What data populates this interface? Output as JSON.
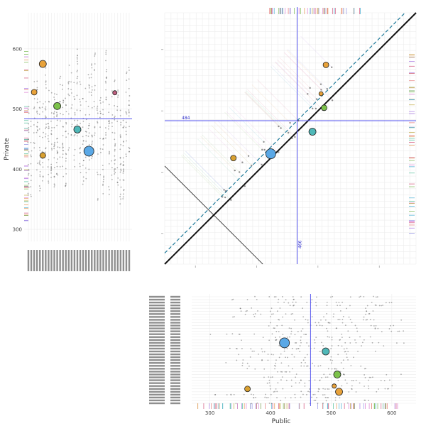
{
  "chart_data": [
    {
      "type": "scatter",
      "panel": "left-strip",
      "ylabel": "Private",
      "yticks": [
        300,
        400,
        500,
        600
      ],
      "ylim": [
        280,
        660
      ],
      "reference_line": 484,
      "highlight": [
        {
          "col": 2,
          "y": 528,
          "color": "#e8a23a",
          "size": 4
        },
        {
          "col": 5,
          "y": 575,
          "color": "#e8a23a",
          "size": 5
        },
        {
          "col": 5,
          "y": 423,
          "color": "#d9a030",
          "size": 4
        },
        {
          "col": 10,
          "y": 505,
          "color": "#7cc24a",
          "size": 5
        },
        {
          "col": 17,
          "y": 466,
          "color": "#4fb8b8",
          "size": 5
        },
        {
          "col": 21,
          "y": 430,
          "color": "#5aa8e6",
          "size": 7
        },
        {
          "col": 30,
          "y": 527,
          "color": "#c06080",
          "size": 3
        }
      ]
    },
    {
      "type": "scatter",
      "panel": "main",
      "ref_h_label": "484",
      "ref_v_label": "466",
      "ref_x": 466,
      "ref_y": 484,
      "xlim": [
        250,
        660
      ],
      "ylim": [
        250,
        660
      ],
      "highlight": [
        {
          "x": 423,
          "y": 430,
          "color": "#5aa8e6",
          "size": 7
        },
        {
          "x": 491,
          "y": 466,
          "color": "#4fb8b8",
          "size": 5
        },
        {
          "x": 513,
          "y": 575,
          "color": "#e8a23a",
          "size": 4
        },
        {
          "x": 362,
          "y": 423,
          "color": "#d9a030",
          "size": 4
        },
        {
          "x": 510,
          "y": 505,
          "color": "#7cc24a",
          "size": 4
        },
        {
          "x": 505,
          "y": 528,
          "color": "#e8a23a",
          "size": 3
        }
      ]
    },
    {
      "type": "scatter",
      "panel": "bottom-strip",
      "xlabel": "Public",
      "xticks": [
        300,
        400,
        500,
        600
      ],
      "xlim": [
        270,
        640
      ],
      "reference_line": 466,
      "highlight": [
        {
          "row": 16,
          "x": 423,
          "color": "#5aa8e6",
          "size": 7
        },
        {
          "row": 19,
          "x": 491,
          "color": "#4fb8b8",
          "size": 5
        },
        {
          "row": 27,
          "x": 510,
          "color": "#7cc24a",
          "size": 5
        },
        {
          "row": 32,
          "x": 362,
          "color": "#d9a030",
          "size": 4
        },
        {
          "row": 33,
          "x": 513,
          "color": "#e8a23a",
          "size": 5
        },
        {
          "row": 31,
          "x": 505,
          "color": "#e8a23a",
          "size": 3
        }
      ]
    }
  ]
}
